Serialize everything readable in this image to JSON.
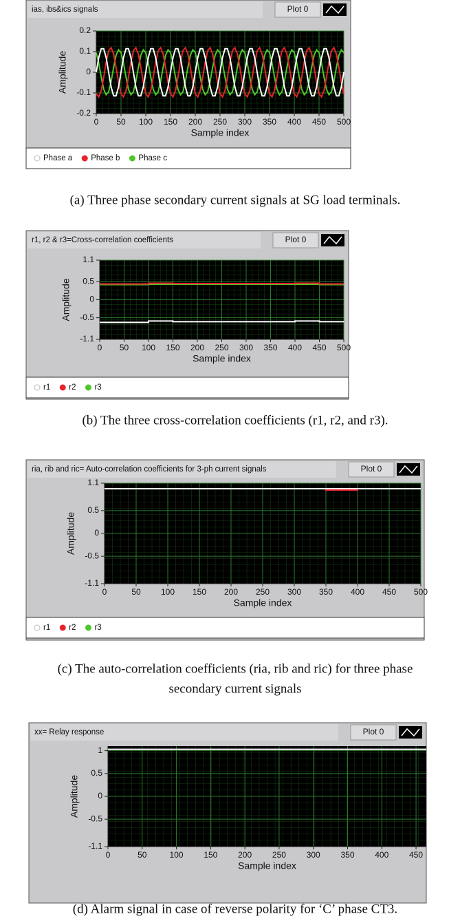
{
  "chart_data": [
    {
      "type": "line",
      "title": "ias, ibs&ics signals",
      "plot_legend": "Plot 0",
      "x_label": "Sample index",
      "y_label": "Amplitude",
      "caption": "(a) Three phase secondary current signals at SG load  terminals.",
      "x": [
        0,
        5,
        10,
        15,
        20,
        25,
        30,
        35,
        40,
        45,
        50,
        55,
        60,
        65,
        70,
        75,
        80,
        85,
        90,
        95,
        100,
        105,
        110,
        115,
        120,
        125,
        130,
        135,
        140,
        145,
        150,
        155,
        160,
        165,
        170,
        175,
        180,
        185,
        190,
        195,
        200,
        205,
        210,
        215,
        220,
        225,
        230,
        235,
        240,
        245,
        250,
        255,
        260,
        265,
        270,
        275,
        280,
        285,
        290,
        295,
        300,
        305,
        310,
        315,
        320,
        325,
        330,
        335,
        340,
        345,
        350,
        355,
        360,
        365,
        370,
        375,
        380,
        385,
        390,
        395,
        400,
        405,
        410,
        415,
        420,
        425,
        430,
        435,
        440,
        445,
        450,
        455,
        460,
        465,
        470,
        475,
        480,
        485,
        490,
        495,
        500
      ],
      "series": [
        {
          "name": "Phase a",
          "color": "#ffffff",
          "values": [
            0,
            0.071,
            0.114,
            0.114,
            0.071,
            0,
            -0.071,
            -0.114,
            -0.114,
            -0.071,
            0,
            0.071,
            0.114,
            0.114,
            0.071,
            0,
            -0.071,
            -0.114,
            -0.114,
            -0.071,
            0,
            0.071,
            0.114,
            0.114,
            0.071,
            0,
            -0.071,
            -0.114,
            -0.114,
            -0.071,
            0,
            0.071,
            0.114,
            0.114,
            0.071,
            0,
            -0.071,
            -0.114,
            -0.114,
            -0.071,
            0,
            0.071,
            0.114,
            0.114,
            0.071,
            0,
            -0.071,
            -0.114,
            -0.114,
            -0.071,
            0,
            0.071,
            0.114,
            0.114,
            0.071,
            0,
            -0.071,
            -0.114,
            -0.114,
            -0.071,
            0,
            0.071,
            0.114,
            0.114,
            0.071,
            0,
            -0.071,
            -0.114,
            -0.114,
            -0.071,
            0,
            0.071,
            0.114,
            0.114,
            0.071,
            0,
            -0.071,
            -0.114,
            -0.114,
            -0.071,
            0,
            0.071,
            0.114,
            0.114,
            0.071,
            0,
            -0.071,
            -0.114,
            -0.114,
            -0.071,
            0,
            0.071,
            0.114,
            0.114,
            0.071,
            0,
            -0.071,
            -0.114,
            -0.114,
            -0.071,
            0
          ]
        },
        {
          "name": "Phase b",
          "color": "#e8232b",
          "values": [
            -0.104,
            -0.119,
            -0.089,
            -0.025,
            0.049,
            0.104,
            0.119,
            0.089,
            0.025,
            -0.049,
            -0.104,
            -0.119,
            -0.089,
            -0.025,
            0.049,
            0.104,
            0.119,
            0.089,
            0.025,
            -0.049,
            -0.104,
            -0.119,
            -0.089,
            -0.025,
            0.049,
            0.104,
            0.119,
            0.089,
            0.025,
            -0.049,
            -0.104,
            -0.119,
            -0.089,
            -0.025,
            0.049,
            0.104,
            0.119,
            0.089,
            0.025,
            -0.049,
            -0.104,
            -0.119,
            -0.089,
            -0.025,
            0.049,
            0.104,
            0.119,
            0.089,
            0.025,
            -0.049,
            -0.104,
            -0.119,
            -0.089,
            -0.025,
            0.049,
            0.104,
            0.119,
            0.089,
            0.025,
            -0.049,
            -0.104,
            -0.119,
            -0.089,
            -0.025,
            0.049,
            0.104,
            0.119,
            0.089,
            0.025,
            -0.049,
            -0.104,
            -0.119,
            -0.089,
            -0.025,
            0.049,
            0.104,
            0.119,
            0.089,
            0.025,
            -0.049,
            -0.104,
            -0.119,
            -0.089,
            -0.025,
            0.049,
            0.104,
            0.119,
            0.089,
            0.025,
            -0.049,
            -0.104,
            -0.119,
            -0.089,
            -0.025,
            0.049,
            0.104,
            0.119,
            0.089,
            0.025,
            -0.049,
            -0.104
          ]
        },
        {
          "name": "Phase c",
          "color": "#4fc62a",
          "values": [
            0.095,
            0.045,
            -0.023,
            -0.082,
            -0.109,
            -0.095,
            -0.045,
            0.023,
            0.082,
            0.109,
            0.095,
            0.045,
            -0.023,
            -0.082,
            -0.109,
            -0.095,
            -0.045,
            0.023,
            0.082,
            0.109,
            0.095,
            0.045,
            -0.023,
            -0.082,
            -0.109,
            -0.095,
            -0.045,
            0.023,
            0.082,
            0.109,
            0.095,
            0.045,
            -0.023,
            -0.082,
            -0.109,
            -0.095,
            -0.045,
            0.023,
            0.082,
            0.109,
            0.095,
            0.045,
            -0.023,
            -0.082,
            -0.109,
            -0.095,
            -0.045,
            0.023,
            0.082,
            0.109,
            0.095,
            0.045,
            -0.023,
            -0.082,
            -0.109,
            -0.095,
            -0.045,
            0.023,
            0.082,
            0.109,
            0.095,
            0.045,
            -0.023,
            -0.082,
            -0.109,
            -0.095,
            -0.045,
            0.023,
            0.082,
            0.109,
            0.095,
            0.045,
            -0.023,
            -0.082,
            -0.109,
            -0.095,
            -0.045,
            0.023,
            0.082,
            0.109,
            0.095,
            0.045,
            -0.023,
            -0.082,
            -0.109,
            -0.095,
            -0.045,
            0.023,
            0.082,
            0.109,
            0.095,
            0.045,
            -0.023,
            -0.082,
            -0.109,
            -0.095,
            -0.045,
            0.023,
            0.082,
            0.109,
            0.095
          ]
        }
      ],
      "xlim": [
        0,
        500
      ],
      "xticks": [
        0,
        50,
        100,
        150,
        200,
        250,
        300,
        350,
        400,
        450,
        500
      ],
      "ylim": [
        -0.2,
        0.2
      ],
      "yticks": [
        -0.2,
        -0.1,
        0,
        0.1,
        0.2
      ],
      "grid": true
    },
    {
      "type": "line",
      "title": "r1, r2 & r3=Cross-correlation coefficients",
      "plot_legend": "Plot 0",
      "x_label": "Sample index",
      "y_label": "Amplitude",
      "caption": "(b)  The three cross-correlation coefficients (r1, r2, and r3).",
      "x": [
        0,
        100,
        100,
        150,
        150,
        400,
        400,
        450,
        450,
        500
      ],
      "series": [
        {
          "name": "r1",
          "color": "#ffffff",
          "values": [
            -0.63,
            -0.63,
            -0.59,
            -0.59,
            -0.61,
            -0.61,
            -0.59,
            -0.59,
            -0.61,
            -0.61
          ]
        },
        {
          "name": "r2",
          "color": "#e8232b",
          "values": [
            0.44,
            0.44,
            0.46,
            0.46,
            0.45,
            0.45,
            0.46,
            0.46,
            0.44,
            0.44
          ]
        },
        {
          "name": "r3",
          "color": "#4fc62a",
          "values": [
            0.42,
            0.42,
            0.43,
            0.43,
            0.43,
            0.43,
            0.43,
            0.43,
            0.42,
            0.42
          ]
        }
      ],
      "xlim": [
        0,
        500
      ],
      "xticks": [
        0,
        50,
        100,
        150,
        200,
        250,
        300,
        350,
        400,
        450,
        500
      ],
      "ylim": [
        -1.1,
        1.1
      ],
      "yticks": [
        -1.1,
        -0.5,
        0,
        0.5,
        1.1
      ],
      "grid": true
    },
    {
      "type": "line",
      "title": "ria, rib and ric= Auto-correlation coefficients for 3-ph current  signals",
      "plot_legend": "Plot 0",
      "x_label": "Sample index",
      "y_label": "Amplitude",
      "caption": [
        "(c)  The auto-correlation coefficients (ria, rib and ric) for three phase",
        "secondary current signals"
      ],
      "x": [
        0,
        350,
        350,
        400,
        400,
        500
      ],
      "series": [
        {
          "name": "r1",
          "color": "#ffffff",
          "values": [
            0.98,
            0.98,
            0.98,
            0.98,
            0.98,
            0.98
          ]
        },
        {
          "name": "r2",
          "color": "#e8232b",
          "values": [
            0.98,
            0.98,
            0.95,
            0.95,
            0.98,
            0.98
          ]
        },
        {
          "name": "r3",
          "color": "#4fc62a",
          "values": [
            0.98,
            0.98,
            0.98,
            0.98,
            0.98,
            0.98
          ]
        }
      ],
      "xlim": [
        0,
        500
      ],
      "xticks": [
        0,
        50,
        100,
        150,
        200,
        250,
        300,
        350,
        400,
        450,
        500
      ],
      "ylim": [
        -1.1,
        1.1
      ],
      "yticks": [
        -1.1,
        -0.5,
        0,
        0.5,
        1.1
      ],
      "grid": true
    },
    {
      "type": "line",
      "title": "xx= Relay response",
      "plot_legend": "Plot 0",
      "x_label": "Sample index",
      "y_label": "Amplitude",
      "caption": "(d)  Alarm signal in case of reverse polarity for ‘C’ phase CT3.",
      "x": [
        0,
        465
      ],
      "series": [
        {
          "color": "#ffffff",
          "values": [
            1.03,
            1.03
          ]
        }
      ],
      "xlim": [
        0,
        465
      ],
      "xticks": [
        0,
        50,
        100,
        150,
        200,
        250,
        300,
        350,
        400,
        450
      ],
      "ylim": [
        -1.1,
        1.1
      ],
      "yticks": [
        -1.1,
        -0.5,
        0,
        0.5,
        1
      ],
      "grid": true
    }
  ]
}
